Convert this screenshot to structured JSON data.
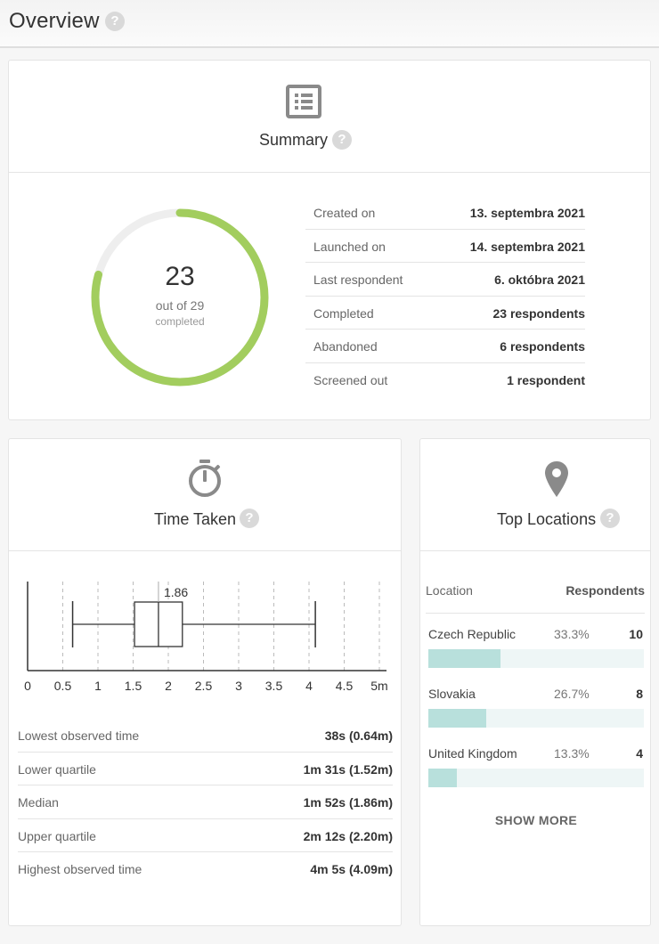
{
  "page": {
    "title": "Overview",
    "help": "?"
  },
  "summary": {
    "title": "Summary",
    "help": "?",
    "completed": 23,
    "total": 29,
    "count_text": "23",
    "out_of_text": "out of 29",
    "completed_label": "completed",
    "ring_color": "#a2cd5e",
    "ring_track_color": "#eeeeee",
    "rows": [
      {
        "label": "Created on",
        "value": "13. septembra 2021"
      },
      {
        "label": "Launched on",
        "value": "14. septembra 2021"
      },
      {
        "label": "Last respondent",
        "value": "6. októbra 2021"
      },
      {
        "label": "Completed",
        "value": "23 respondents"
      },
      {
        "label": "Abandoned",
        "value": "6 respondents"
      },
      {
        "label": "Screened out",
        "value": "1 respondent"
      }
    ]
  },
  "time_taken": {
    "title": "Time Taken",
    "help": "?",
    "chart_data": {
      "type": "boxplot",
      "x_ticks": [
        "0",
        "0.5",
        "1",
        "1.5",
        "2",
        "2.5",
        "3",
        "3.5",
        "4",
        "4.5",
        "5m"
      ],
      "x_range": [
        0,
        5
      ],
      "min": 0.64,
      "q1": 1.52,
      "median": 1.86,
      "q3": 2.2,
      "max": 4.09,
      "median_label": "1.86",
      "grid": "vertical dashed"
    },
    "rows": [
      {
        "label": "Lowest observed time",
        "value": "38s (0.64m)"
      },
      {
        "label": "Lower quartile",
        "value": "1m 31s (1.52m)"
      },
      {
        "label": "Median",
        "value": "1m 52s (1.86m)"
      },
      {
        "label": "Upper quartile",
        "value": "2m 12s (2.20m)"
      },
      {
        "label": "Highest observed time",
        "value": "4m 5s (4.09m)"
      }
    ]
  },
  "top_locations": {
    "title": "Top Locations",
    "help": "?",
    "col_location": "Location",
    "col_respondents": "Respondents",
    "bar_color": "#b8e0dc",
    "bar_track_color": "#eef6f6",
    "rows": [
      {
        "name": "Czech Republic",
        "percent": "33.3%",
        "count": "10",
        "fraction": 0.333
      },
      {
        "name": "Slovakia",
        "percent": "26.7%",
        "count": "8",
        "fraction": 0.267
      },
      {
        "name": "United Kingdom",
        "percent": "13.3%",
        "count": "4",
        "fraction": 0.133
      }
    ],
    "show_more": "SHOW MORE"
  }
}
